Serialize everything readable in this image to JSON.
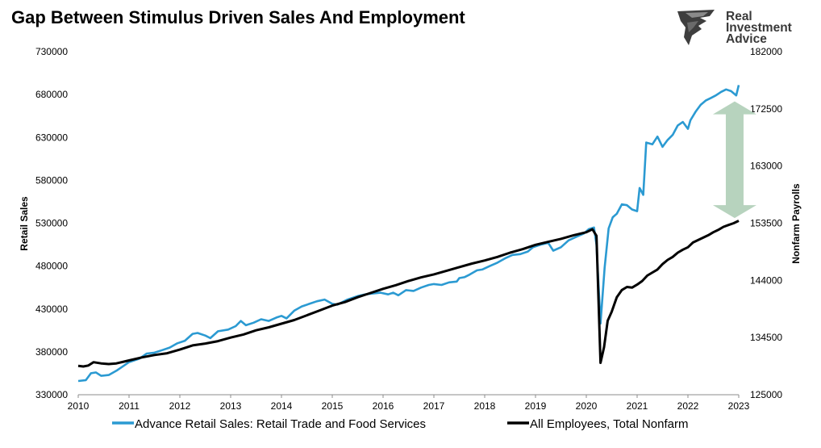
{
  "brand": {
    "lines": [
      "Real",
      "Investment",
      "Advice"
    ]
  },
  "colors": {
    "retail": "#2B9AD2",
    "payrolls": "#000000",
    "arrow": "#B7D3BE",
    "brand_text": "#3A3A3A"
  },
  "chart_data": {
    "type": "line",
    "title": "Gap Between Stimulus Driven Sales And Employment",
    "ylabel_left": "Retail Sales",
    "ylabel_right": "Nonfarm Payrolls",
    "xlabel": "",
    "ylim_left": [
      330000,
      730000
    ],
    "ylim_right": [
      125000,
      182000
    ],
    "xlim": [
      2010.0,
      2023.0
    ],
    "yticks_left": [
      "330000",
      "380000",
      "430000",
      "480000",
      "530000",
      "580000",
      "630000",
      "680000",
      "730000"
    ],
    "yticks_right": [
      "125000",
      "134500",
      "144000",
      "153500",
      "163000",
      "172500",
      "182000"
    ],
    "xticks": [
      "2010",
      "2011",
      "2012",
      "2013",
      "2014",
      "2015",
      "2016",
      "2017",
      "2018",
      "2019",
      "2020",
      "2021",
      "2022",
      "2023"
    ],
    "grid": false,
    "legend_position": "bottom",
    "annotation": "double-headed arrow between the two series in late 2022",
    "series": [
      {
        "name": "Advance Retail Sales: Retail Trade and Food Services",
        "axis": "left",
        "points": [
          [
            2010.0,
            346000
          ],
          [
            2010.15,
            347000
          ],
          [
            2010.25,
            355000
          ],
          [
            2010.35,
            356000
          ],
          [
            2010.45,
            352000
          ],
          [
            2010.6,
            353000
          ],
          [
            2010.75,
            358000
          ],
          [
            2010.9,
            364000
          ],
          [
            2011.0,
            368000
          ],
          [
            2011.2,
            372000
          ],
          [
            2011.35,
            378000
          ],
          [
            2011.5,
            379000
          ],
          [
            2011.65,
            382000
          ],
          [
            2011.8,
            385000
          ],
          [
            2011.95,
            390000
          ],
          [
            2012.1,
            393000
          ],
          [
            2012.25,
            401000
          ],
          [
            2012.35,
            402000
          ],
          [
            2012.5,
            399000
          ],
          [
            2012.6,
            396000
          ],
          [
            2012.75,
            404000
          ],
          [
            2012.95,
            406000
          ],
          [
            2013.1,
            410000
          ],
          [
            2013.2,
            416000
          ],
          [
            2013.3,
            411000
          ],
          [
            2013.45,
            414000
          ],
          [
            2013.6,
            418000
          ],
          [
            2013.75,
            416000
          ],
          [
            2013.9,
            420000
          ],
          [
            2014.0,
            422000
          ],
          [
            2014.1,
            419000
          ],
          [
            2014.25,
            428000
          ],
          [
            2014.4,
            433000
          ],
          [
            2014.55,
            436000
          ],
          [
            2014.7,
            439000
          ],
          [
            2014.85,
            441000
          ],
          [
            2015.0,
            436000
          ],
          [
            2015.1,
            435000
          ],
          [
            2015.3,
            441000
          ],
          [
            2015.5,
            445000
          ],
          [
            2015.65,
            447000
          ],
          [
            2015.8,
            448000
          ],
          [
            2015.95,
            449000
          ],
          [
            2016.1,
            447000
          ],
          [
            2016.2,
            449000
          ],
          [
            2016.3,
            446000
          ],
          [
            2016.45,
            452000
          ],
          [
            2016.6,
            451000
          ],
          [
            2016.75,
            455000
          ],
          [
            2016.9,
            458000
          ],
          [
            2017.0,
            459000
          ],
          [
            2017.15,
            458000
          ],
          [
            2017.3,
            461000
          ],
          [
            2017.45,
            462000
          ],
          [
            2017.5,
            466000
          ],
          [
            2017.6,
            467000
          ],
          [
            2017.7,
            470000
          ],
          [
            2017.85,
            475000
          ],
          [
            2017.95,
            476000
          ],
          [
            2018.1,
            480000
          ],
          [
            2018.25,
            484000
          ],
          [
            2018.4,
            489000
          ],
          [
            2018.55,
            493000
          ],
          [
            2018.7,
            494000
          ],
          [
            2018.85,
            497000
          ],
          [
            2018.95,
            502000
          ],
          [
            2019.1,
            505000
          ],
          [
            2019.25,
            507000
          ],
          [
            2019.35,
            498000
          ],
          [
            2019.5,
            502000
          ],
          [
            2019.65,
            510000
          ],
          [
            2019.8,
            514000
          ],
          [
            2019.95,
            518000
          ],
          [
            2020.05,
            523000
          ],
          [
            2020.15,
            525000
          ],
          [
            2020.2,
            505000
          ],
          [
            2020.28,
            413000
          ],
          [
            2020.36,
            478000
          ],
          [
            2020.44,
            524000
          ],
          [
            2020.52,
            537000
          ],
          [
            2020.6,
            541000
          ],
          [
            2020.7,
            552000
          ],
          [
            2020.8,
            551000
          ],
          [
            2020.9,
            546000
          ],
          [
            2021.0,
            544000
          ],
          [
            2021.05,
            571000
          ],
          [
            2021.12,
            563000
          ],
          [
            2021.18,
            624000
          ],
          [
            2021.3,
            622000
          ],
          [
            2021.4,
            631000
          ],
          [
            2021.5,
            619000
          ],
          [
            2021.6,
            627000
          ],
          [
            2021.7,
            633000
          ],
          [
            2021.8,
            644000
          ],
          [
            2021.9,
            648000
          ],
          [
            2022.0,
            640000
          ],
          [
            2022.05,
            650000
          ],
          [
            2022.15,
            660000
          ],
          [
            2022.25,
            668000
          ],
          [
            2022.35,
            673000
          ],
          [
            2022.45,
            676000
          ],
          [
            2022.55,
            679000
          ],
          [
            2022.65,
            683000
          ],
          [
            2022.75,
            686000
          ],
          [
            2022.85,
            684000
          ],
          [
            2022.95,
            679000
          ],
          [
            2023.0,
            691000
          ]
        ]
      },
      {
        "name": "All Employees, Total Nonfarm",
        "axis": "right",
        "points": [
          [
            2010.0,
            129800
          ],
          [
            2010.1,
            129700
          ],
          [
            2010.2,
            129850
          ],
          [
            2010.3,
            130400
          ],
          [
            2010.45,
            130200
          ],
          [
            2010.6,
            130100
          ],
          [
            2010.75,
            130200
          ],
          [
            2010.9,
            130500
          ],
          [
            2011.0,
            130700
          ],
          [
            2011.25,
            131200
          ],
          [
            2011.5,
            131600
          ],
          [
            2011.75,
            131900
          ],
          [
            2012.0,
            132500
          ],
          [
            2012.25,
            133200
          ],
          [
            2012.5,
            133500
          ],
          [
            2012.75,
            133900
          ],
          [
            2013.0,
            134500
          ],
          [
            2013.25,
            135000
          ],
          [
            2013.5,
            135700
          ],
          [
            2013.75,
            136200
          ],
          [
            2014.0,
            136800
          ],
          [
            2014.25,
            137400
          ],
          [
            2014.5,
            138200
          ],
          [
            2014.75,
            139000
          ],
          [
            2015.0,
            139800
          ],
          [
            2015.25,
            140400
          ],
          [
            2015.5,
            141200
          ],
          [
            2015.75,
            141900
          ],
          [
            2016.0,
            142600
          ],
          [
            2016.25,
            143200
          ],
          [
            2016.5,
            143900
          ],
          [
            2016.75,
            144500
          ],
          [
            2017.0,
            145000
          ],
          [
            2017.25,
            145600
          ],
          [
            2017.5,
            146200
          ],
          [
            2017.75,
            146800
          ],
          [
            2018.0,
            147300
          ],
          [
            2018.25,
            147900
          ],
          [
            2018.5,
            148600
          ],
          [
            2018.75,
            149200
          ],
          [
            2019.0,
            149900
          ],
          [
            2019.25,
            150400
          ],
          [
            2019.5,
            150900
          ],
          [
            2019.75,
            151500
          ],
          [
            2020.0,
            152000
          ],
          [
            2020.12,
            152500
          ],
          [
            2020.2,
            151400
          ],
          [
            2020.28,
            130300
          ],
          [
            2020.35,
            132900
          ],
          [
            2020.42,
            137300
          ],
          [
            2020.5,
            138800
          ],
          [
            2020.6,
            141200
          ],
          [
            2020.7,
            142400
          ],
          [
            2020.8,
            142900
          ],
          [
            2020.9,
            142800
          ],
          [
            2021.0,
            143300
          ],
          [
            2021.1,
            143900
          ],
          [
            2021.2,
            144800
          ],
          [
            2021.3,
            145300
          ],
          [
            2021.4,
            145800
          ],
          [
            2021.5,
            146700
          ],
          [
            2021.6,
            147400
          ],
          [
            2021.7,
            147900
          ],
          [
            2021.8,
            148600
          ],
          [
            2021.9,
            149100
          ],
          [
            2022.0,
            149500
          ],
          [
            2022.1,
            150300
          ],
          [
            2022.2,
            150700
          ],
          [
            2022.3,
            151100
          ],
          [
            2022.4,
            151500
          ],
          [
            2022.5,
            152000
          ],
          [
            2022.6,
            152400
          ],
          [
            2022.7,
            152900
          ],
          [
            2022.8,
            153200
          ],
          [
            2022.9,
            153500
          ],
          [
            2023.0,
            153900
          ]
        ]
      }
    ]
  },
  "arrow": {
    "x": 2022.92,
    "top_value": 672000,
    "bottom_value": 536000
  }
}
